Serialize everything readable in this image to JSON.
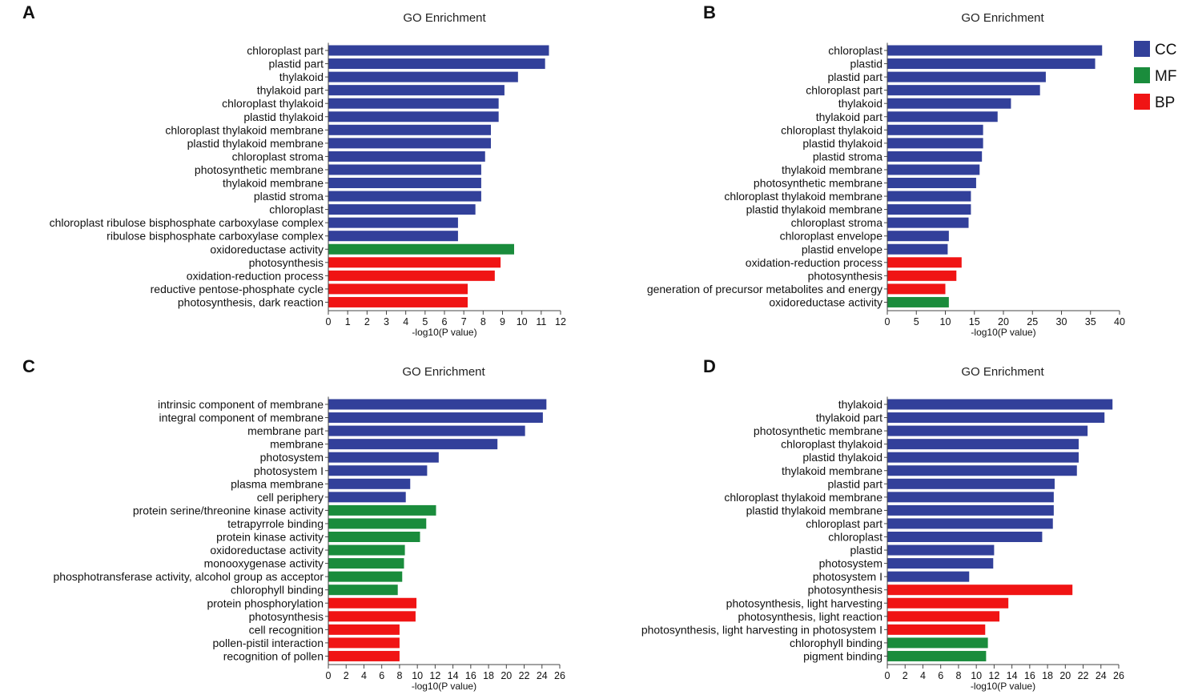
{
  "colors": {
    "CC": "#32409a",
    "MF": "#1a8c3c",
    "BP": "#f01414"
  },
  "legend": [
    {
      "key": "CC",
      "label": "CC"
    },
    {
      "key": "MF",
      "label": "MF"
    },
    {
      "key": "BP",
      "label": "BP"
    }
  ],
  "chart_data": [
    {
      "panel": "A",
      "type": "bar",
      "orientation": "horizontal",
      "title": "GO Enrichment",
      "xlabel": "-log10(P value)",
      "xlim": [
        0,
        12
      ],
      "xticks": [
        0,
        1,
        2,
        3,
        4,
        5,
        6,
        7,
        8,
        9,
        10,
        11,
        12
      ],
      "bars": [
        {
          "label": "chloroplast part",
          "value": 11.4,
          "cat": "CC"
        },
        {
          "label": "plastid part",
          "value": 11.2,
          "cat": "CC"
        },
        {
          "label": "thylakoid",
          "value": 9.8,
          "cat": "CC"
        },
        {
          "label": "thylakoid part",
          "value": 9.1,
          "cat": "CC"
        },
        {
          "label": "chloroplast thylakoid",
          "value": 8.8,
          "cat": "CC"
        },
        {
          "label": "plastid thylakoid",
          "value": 8.8,
          "cat": "CC"
        },
        {
          "label": "chloroplast thylakoid membrane",
          "value": 8.4,
          "cat": "CC"
        },
        {
          "label": "plastid thylakoid membrane",
          "value": 8.4,
          "cat": "CC"
        },
        {
          "label": "chloroplast stroma",
          "value": 8.1,
          "cat": "CC"
        },
        {
          "label": "photosynthetic membrane",
          "value": 7.9,
          "cat": "CC"
        },
        {
          "label": "thylakoid membrane",
          "value": 7.9,
          "cat": "CC"
        },
        {
          "label": "plastid stroma",
          "value": 7.9,
          "cat": "CC"
        },
        {
          "label": "chloroplast",
          "value": 7.6,
          "cat": "CC"
        },
        {
          "label": "chloroplast ribulose bisphosphate carboxylase complex",
          "value": 6.7,
          "cat": "CC"
        },
        {
          "label": "ribulose bisphosphate carboxylase complex",
          "value": 6.7,
          "cat": "CC"
        },
        {
          "label": "oxidoreductase activity",
          "value": 9.6,
          "cat": "MF"
        },
        {
          "label": "photosynthesis",
          "value": 8.9,
          "cat": "BP"
        },
        {
          "label": "oxidation-reduction process",
          "value": 8.6,
          "cat": "BP"
        },
        {
          "label": "reductive pentose-phosphate cycle",
          "value": 7.2,
          "cat": "BP"
        },
        {
          "label": "photosynthesis, dark reaction",
          "value": 7.2,
          "cat": "BP"
        }
      ]
    },
    {
      "panel": "B",
      "type": "bar",
      "orientation": "horizontal",
      "title": "GO Enrichment",
      "xlabel": "-log10(P value)",
      "xlim": [
        0,
        40
      ],
      "xticks": [
        0,
        5,
        10,
        15,
        20,
        25,
        30,
        35,
        40
      ],
      "bars": [
        {
          "label": "chloroplast",
          "value": 37.0,
          "cat": "CC"
        },
        {
          "label": "plastid",
          "value": 35.8,
          "cat": "CC"
        },
        {
          "label": "plastid part",
          "value": 27.3,
          "cat": "CC"
        },
        {
          "label": "chloroplast part",
          "value": 26.3,
          "cat": "CC"
        },
        {
          "label": "thylakoid",
          "value": 21.3,
          "cat": "CC"
        },
        {
          "label": "thylakoid part",
          "value": 19.0,
          "cat": "CC"
        },
        {
          "label": "chloroplast thylakoid",
          "value": 16.5,
          "cat": "CC"
        },
        {
          "label": "plastid thylakoid",
          "value": 16.5,
          "cat": "CC"
        },
        {
          "label": "plastid stroma",
          "value": 16.3,
          "cat": "CC"
        },
        {
          "label": "thylakoid membrane",
          "value": 15.9,
          "cat": "CC"
        },
        {
          "label": "photosynthetic membrane",
          "value": 15.3,
          "cat": "CC"
        },
        {
          "label": "chloroplast thylakoid membrane",
          "value": 14.4,
          "cat": "CC"
        },
        {
          "label": "plastid thylakoid membrane",
          "value": 14.4,
          "cat": "CC"
        },
        {
          "label": "chloroplast stroma",
          "value": 14.0,
          "cat": "CC"
        },
        {
          "label": "chloroplast envelope",
          "value": 10.6,
          "cat": "CC"
        },
        {
          "label": "plastid envelope",
          "value": 10.4,
          "cat": "CC"
        },
        {
          "label": "oxidation-reduction process",
          "value": 12.8,
          "cat": "BP"
        },
        {
          "label": "photosynthesis",
          "value": 11.9,
          "cat": "BP"
        },
        {
          "label": "generation of precursor metabolites and energy",
          "value": 10.0,
          "cat": "BP"
        },
        {
          "label": "oxidoreductase activity",
          "value": 10.6,
          "cat": "MF"
        }
      ]
    },
    {
      "panel": "C",
      "type": "bar",
      "orientation": "horizontal",
      "title": "GO Enrichment",
      "xlabel": "-log10(P value)",
      "xlim": [
        0,
        26
      ],
      "xticks": [
        0,
        2,
        4,
        6,
        8,
        10,
        12,
        14,
        16,
        18,
        20,
        22,
        24,
        26
      ],
      "bars": [
        {
          "label": "intrinsic component of membrane",
          "value": 24.5,
          "cat": "CC"
        },
        {
          "label": "integral component of membrane",
          "value": 24.1,
          "cat": "CC"
        },
        {
          "label": "membrane part",
          "value": 22.1,
          "cat": "CC"
        },
        {
          "label": "membrane",
          "value": 19.0,
          "cat": "CC"
        },
        {
          "label": "photosystem",
          "value": 12.4,
          "cat": "CC"
        },
        {
          "label": "photosystem I",
          "value": 11.1,
          "cat": "CC"
        },
        {
          "label": "plasma membrane",
          "value": 9.2,
          "cat": "CC"
        },
        {
          "label": "cell periphery",
          "value": 8.7,
          "cat": "CC"
        },
        {
          "label": "protein serine/threonine kinase activity",
          "value": 12.1,
          "cat": "MF"
        },
        {
          "label": "tetrapyrrole binding",
          "value": 11.0,
          "cat": "MF"
        },
        {
          "label": "protein kinase activity",
          "value": 10.3,
          "cat": "MF"
        },
        {
          "label": "oxidoreductase activity",
          "value": 8.6,
          "cat": "MF"
        },
        {
          "label": "monooxygenase activity",
          "value": 8.5,
          "cat": "MF"
        },
        {
          "label": "phosphotransferase activity, alcohol group as acceptor",
          "value": 8.3,
          "cat": "MF"
        },
        {
          "label": "chlorophyll binding",
          "value": 7.8,
          "cat": "MF"
        },
        {
          "label": "protein phosphorylation",
          "value": 9.9,
          "cat": "BP"
        },
        {
          "label": "photosynthesis",
          "value": 9.8,
          "cat": "BP"
        },
        {
          "label": "cell recognition",
          "value": 8.0,
          "cat": "BP"
        },
        {
          "label": "pollen-pistil interaction",
          "value": 8.0,
          "cat": "BP"
        },
        {
          "label": "recognition of pollen",
          "value": 8.0,
          "cat": "BP"
        }
      ]
    },
    {
      "panel": "D",
      "type": "bar",
      "orientation": "horizontal",
      "title": "GO Enrichment",
      "xlabel": "-log10(P value)",
      "xlim": [
        0,
        26
      ],
      "xticks": [
        0,
        2,
        4,
        6,
        8,
        10,
        12,
        14,
        16,
        18,
        20,
        22,
        24,
        26
      ],
      "bars": [
        {
          "label": "thylakoid",
          "value": 25.3,
          "cat": "CC"
        },
        {
          "label": "thylakoid part",
          "value": 24.4,
          "cat": "CC"
        },
        {
          "label": "photosynthetic membrane",
          "value": 22.5,
          "cat": "CC"
        },
        {
          "label": "chloroplast thylakoid",
          "value": 21.5,
          "cat": "CC"
        },
        {
          "label": "plastid thylakoid",
          "value": 21.5,
          "cat": "CC"
        },
        {
          "label": "thylakoid membrane",
          "value": 21.3,
          "cat": "CC"
        },
        {
          "label": "plastid part",
          "value": 18.8,
          "cat": "CC"
        },
        {
          "label": "chloroplast thylakoid membrane",
          "value": 18.7,
          "cat": "CC"
        },
        {
          "label": "plastid thylakoid membrane",
          "value": 18.7,
          "cat": "CC"
        },
        {
          "label": "chloroplast part",
          "value": 18.6,
          "cat": "CC"
        },
        {
          "label": "chloroplast",
          "value": 17.4,
          "cat": "CC"
        },
        {
          "label": "plastid",
          "value": 12.0,
          "cat": "CC"
        },
        {
          "label": "photosystem",
          "value": 11.9,
          "cat": "CC"
        },
        {
          "label": "photosystem I",
          "value": 9.2,
          "cat": "CC"
        },
        {
          "label": "photosynthesis",
          "value": 20.8,
          "cat": "BP"
        },
        {
          "label": "photosynthesis, light harvesting",
          "value": 13.6,
          "cat": "BP"
        },
        {
          "label": "photosynthesis, light reaction",
          "value": 12.6,
          "cat": "BP"
        },
        {
          "label": "photosynthesis, light harvesting in photosystem I",
          "value": 11.0,
          "cat": "BP"
        },
        {
          "label": "chlorophyll binding",
          "value": 11.3,
          "cat": "MF"
        },
        {
          "label": "pigment binding",
          "value": 11.1,
          "cat": "MF"
        }
      ]
    }
  ]
}
